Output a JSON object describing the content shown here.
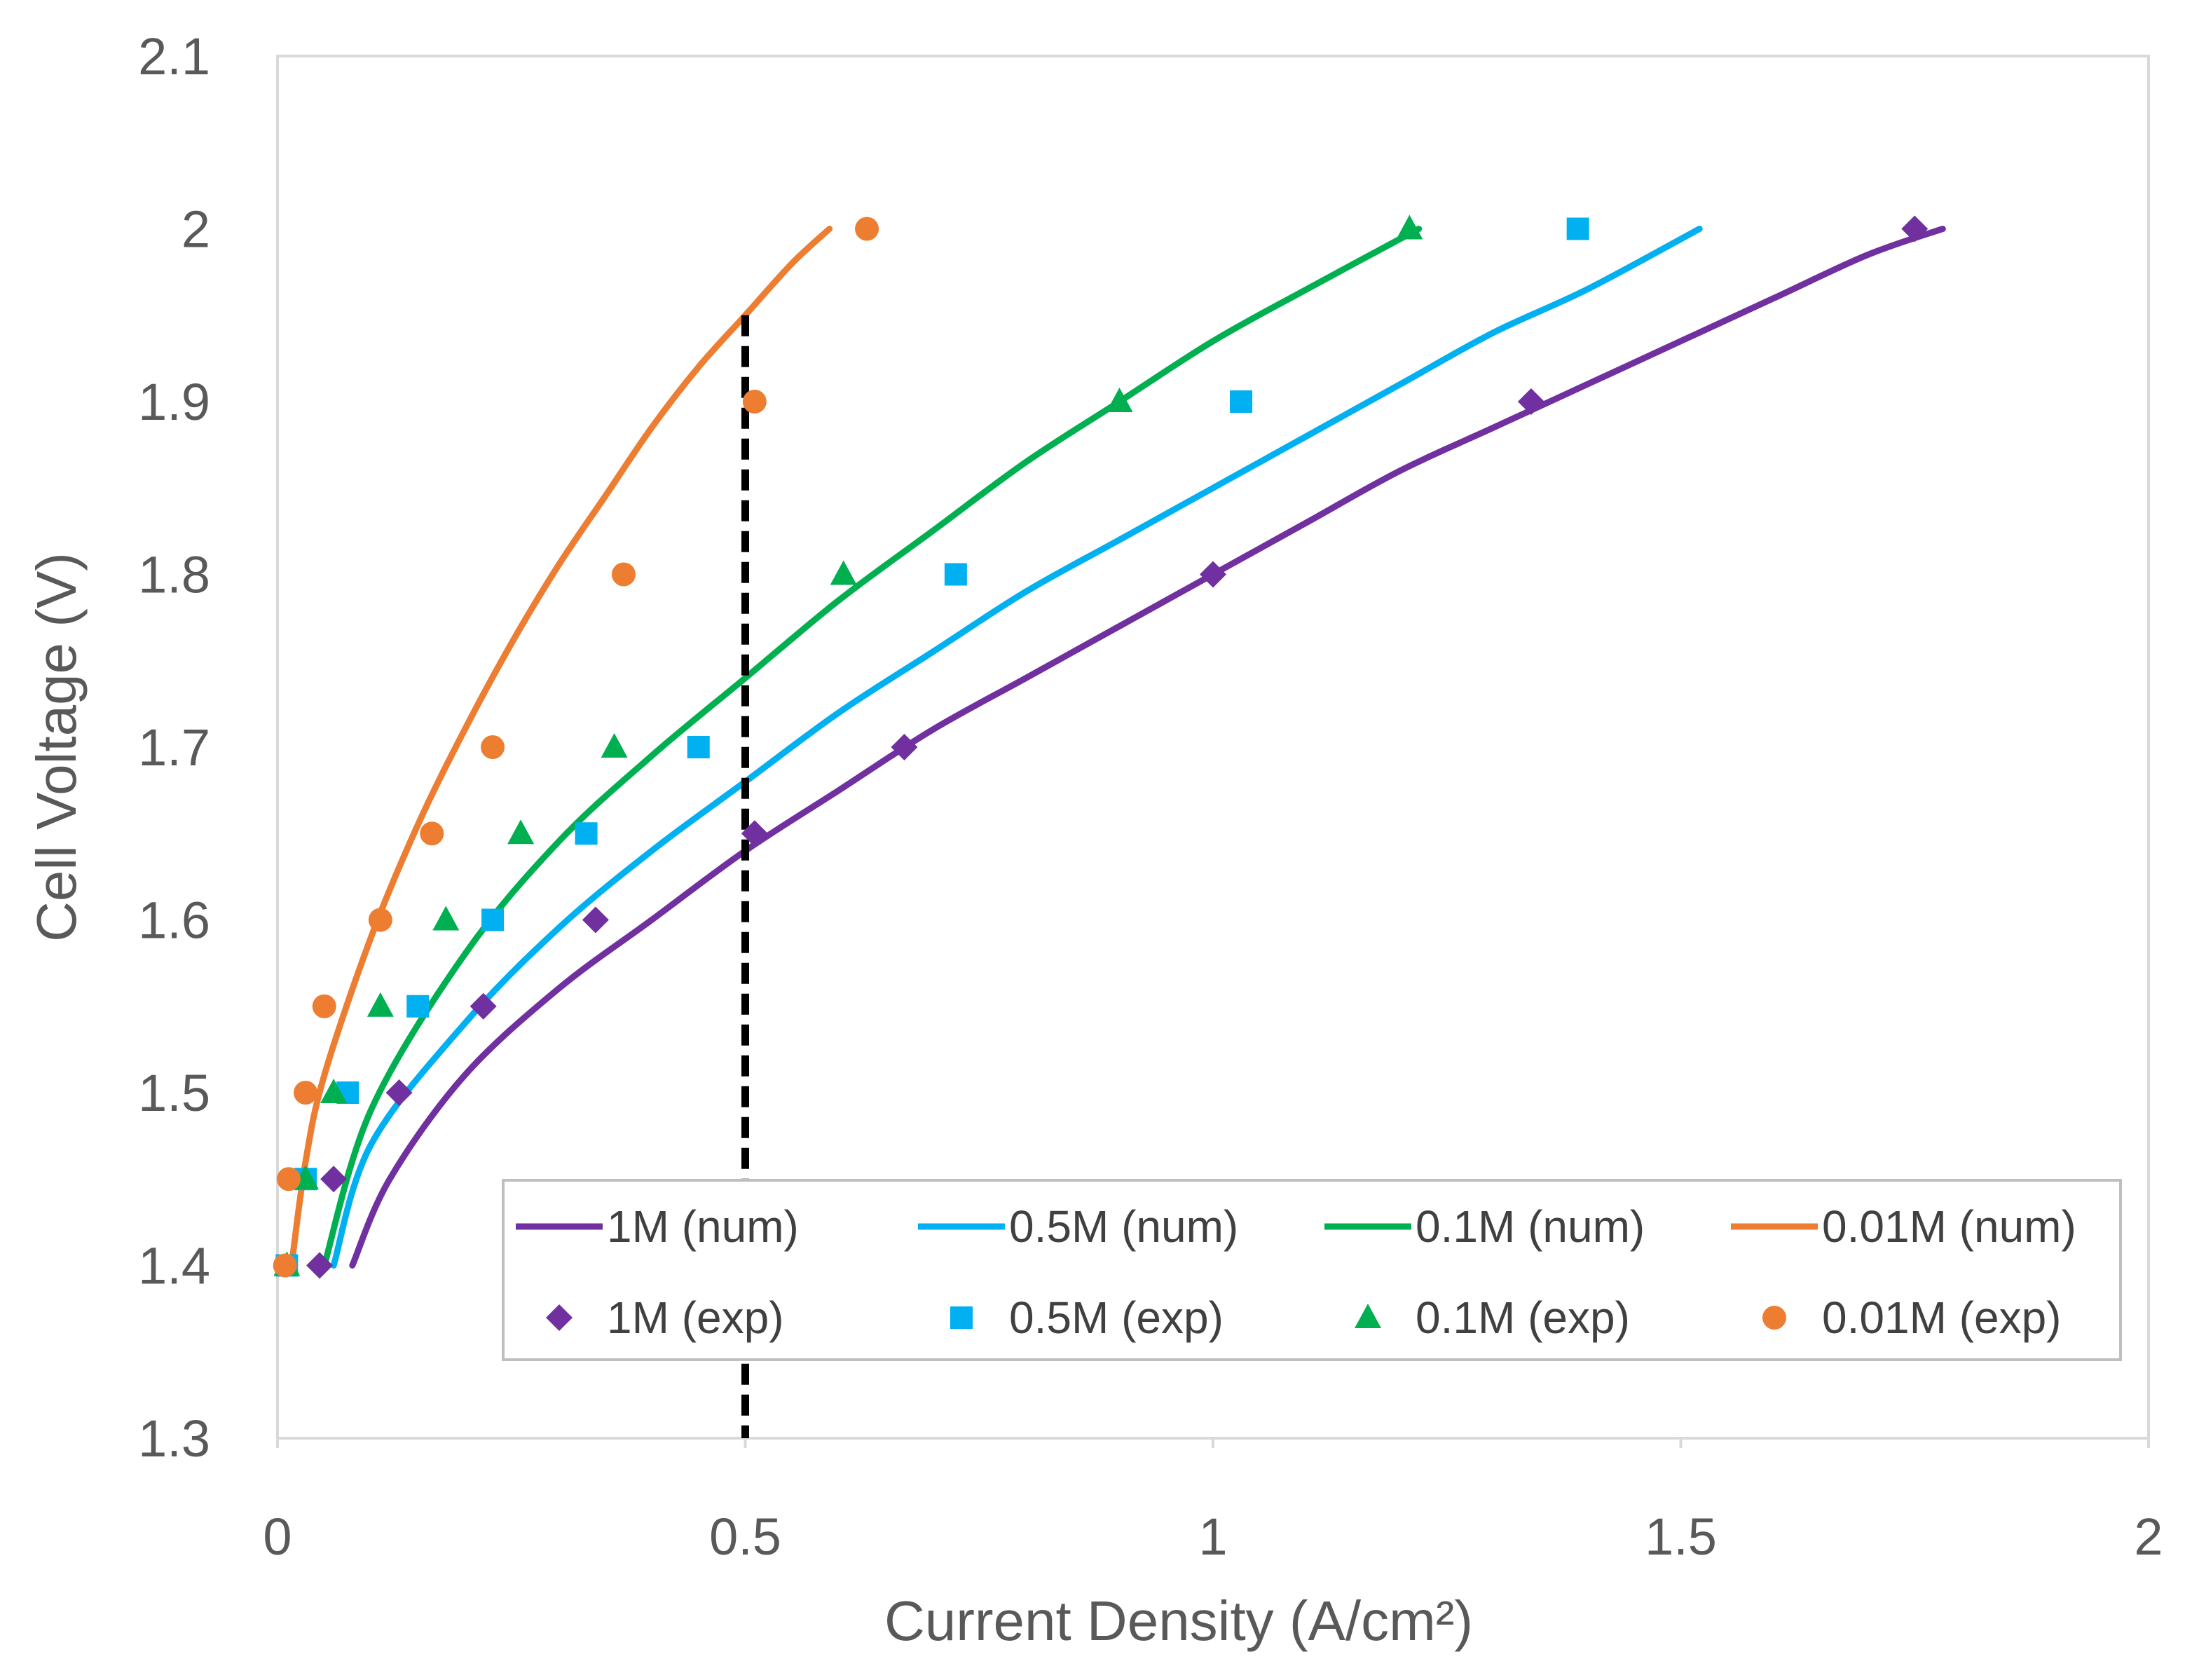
{
  "chart_data": {
    "type": "scatter",
    "title": "",
    "xlabel": "Current Density (A/cm²)",
    "ylabel": "Cell Voltage (V)",
    "xlim": [
      0,
      2
    ],
    "ylim": [
      1.3,
      2.1
    ],
    "xticks": [
      0,
      0.5,
      1,
      1.5,
      2
    ],
    "xtick_labels": [
      "0",
      "0.5",
      "1",
      "1.5",
      "2"
    ],
    "yticks": [
      1.3,
      1.4,
      1.5,
      1.6,
      1.7,
      1.8,
      1.9,
      2.0,
      2.1
    ],
    "ytick_labels": [
      "1.3",
      "1.4",
      "1.5",
      "1.6",
      "1.7",
      "1.8",
      "1.9",
      "2",
      "2.1"
    ],
    "grid": false,
    "legend_position": "bottom-right inside",
    "reference_line": {
      "x": 0.5,
      "y_from": 1.3,
      "y_to": 1.95,
      "style": "dashed",
      "color": "#000000"
    },
    "series": [
      {
        "name": "1M (num)",
        "kind": "line",
        "color": "#7030A0",
        "x": [
          0.08,
          0.12,
          0.2,
          0.3,
          0.4,
          0.5,
          0.6,
          0.7,
          0.8,
          0.9,
          1.0,
          1.1,
          1.2,
          1.3,
          1.4,
          1.5,
          1.6,
          1.7,
          1.78
        ],
        "y": [
          1.4,
          1.45,
          1.51,
          1.56,
          1.6,
          1.64,
          1.675,
          1.71,
          1.74,
          1.77,
          1.8,
          1.83,
          1.86,
          1.885,
          1.91,
          1.935,
          1.96,
          1.985,
          2.0
        ]
      },
      {
        "name": "0.5M (num)",
        "kind": "line",
        "color": "#00B0F0",
        "x": [
          0.06,
          0.1,
          0.2,
          0.3,
          0.4,
          0.5,
          0.6,
          0.7,
          0.8,
          0.9,
          1.0,
          1.1,
          1.2,
          1.3,
          1.4,
          1.52
        ],
        "y": [
          1.4,
          1.47,
          1.54,
          1.595,
          1.64,
          1.68,
          1.72,
          1.755,
          1.79,
          1.82,
          1.85,
          1.88,
          1.91,
          1.94,
          1.965,
          2.0
        ]
      },
      {
        "name": "0.1M (num)",
        "kind": "line",
        "color": "#00B050",
        "x": [
          0.05,
          0.1,
          0.2,
          0.3,
          0.4,
          0.5,
          0.6,
          0.7,
          0.8,
          0.9,
          1.0,
          1.1,
          1.22
        ],
        "y": [
          1.4,
          1.49,
          1.58,
          1.645,
          1.695,
          1.74,
          1.785,
          1.825,
          1.865,
          1.9,
          1.935,
          1.965,
          2.0
        ]
      },
      {
        "name": "0.01M (num)",
        "kind": "line",
        "color": "#ED7D31",
        "x": [
          0.015,
          0.03,
          0.05,
          0.1,
          0.15,
          0.2,
          0.25,
          0.3,
          0.35,
          0.4,
          0.45,
          0.5,
          0.55,
          0.59
        ],
        "y": [
          1.4,
          1.46,
          1.51,
          1.59,
          1.655,
          1.71,
          1.76,
          1.805,
          1.845,
          1.885,
          1.92,
          1.95,
          1.98,
          2.0
        ]
      },
      {
        "name": "1M (exp)",
        "kind": "scatter",
        "marker": "diamond",
        "color": "#7030A0",
        "x": [
          0.045,
          0.06,
          0.13,
          0.22,
          0.34,
          0.51,
          0.67,
          1.0,
          1.34,
          1.75
        ],
        "y": [
          1.4,
          1.45,
          1.5,
          1.55,
          1.6,
          1.65,
          1.7,
          1.8,
          1.9,
          2.0
        ]
      },
      {
        "name": "0.5M (exp)",
        "kind": "scatter",
        "marker": "square",
        "color": "#00B0F0",
        "x": [
          0.01,
          0.03,
          0.075,
          0.15,
          0.23,
          0.33,
          0.45,
          0.725,
          1.03,
          1.39
        ],
        "y": [
          1.4,
          1.45,
          1.5,
          1.55,
          1.6,
          1.65,
          1.7,
          1.8,
          1.9,
          2.0
        ]
      },
      {
        "name": "0.1M (exp)",
        "kind": "scatter",
        "marker": "triangle",
        "color": "#00B050",
        "x": [
          0.01,
          0.03,
          0.06,
          0.11,
          0.18,
          0.26,
          0.36,
          0.605,
          0.9,
          1.21
        ],
        "y": [
          1.4,
          1.45,
          1.5,
          1.55,
          1.6,
          1.65,
          1.7,
          1.8,
          1.9,
          2.0
        ]
      },
      {
        "name": "0.01M (exp)",
        "kind": "scatter",
        "marker": "circle",
        "color": "#ED7D31",
        "x": [
          0.008,
          0.012,
          0.03,
          0.05,
          0.11,
          0.165,
          0.23,
          0.37,
          0.51,
          0.63
        ],
        "y": [
          1.4,
          1.45,
          1.5,
          1.55,
          1.6,
          1.65,
          1.7,
          1.8,
          1.9,
          2.0
        ]
      }
    ]
  }
}
